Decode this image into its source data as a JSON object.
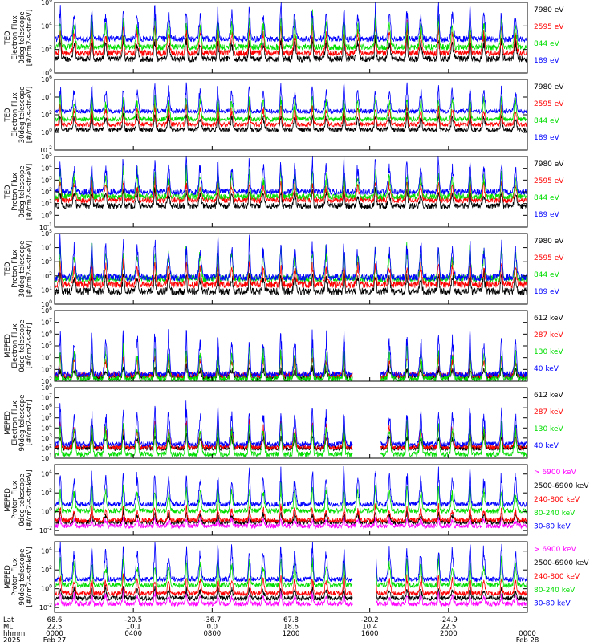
{
  "chart_data": {
    "type": "line",
    "year": "2025",
    "panels": [
      {
        "ylabel": [
          "TED",
          "Electron Flux",
          "0deg telescope",
          "[#/cm2-s-str-eV]"
        ],
        "yticks": [
          "10^6",
          "10^4",
          "10^2",
          "10^0"
        ],
        "ylim_log": [
          0,
          6
        ],
        "series": [
          {
            "name": "7980 eV",
            "color": "#000000",
            "base": 1.2,
            "spike": 1.6
          },
          {
            "name": "2595 eV",
            "color": "#ff0000",
            "base": 1.7,
            "spike": 2.0
          },
          {
            "name": "844 eV",
            "color": "#00dd00",
            "base": 2.2,
            "spike": 2.2
          },
          {
            "name": "189 eV",
            "color": "#0000ff",
            "base": 2.9,
            "spike": 2.4
          }
        ]
      },
      {
        "ylabel": [
          "TED",
          "Electron Flux",
          "30deg telescope",
          "[#/cm2-s-str-eV]"
        ],
        "yticks": [
          "10^6",
          "10^4",
          "10^2",
          "10^0",
          "10^-2"
        ],
        "ylim_log": [
          -2,
          6
        ],
        "series": [
          {
            "name": "7980 eV",
            "color": "#000000",
            "base": 0.3,
            "spike": 1.6
          },
          {
            "name": "2595 eV",
            "color": "#ff0000",
            "base": 0.9,
            "spike": 2.0
          },
          {
            "name": "844 eV",
            "color": "#00dd00",
            "base": 1.5,
            "spike": 2.3
          },
          {
            "name": "189 eV",
            "color": "#0000ff",
            "base": 2.4,
            "spike": 2.6
          }
        ]
      },
      {
        "ylabel": [
          "TED",
          "Proton Flux",
          "0deg telescope",
          "[#/cm2-s-str-eV]"
        ],
        "yticks": [
          "10^5",
          "10^4",
          "10^3",
          "10^2",
          "10^1",
          "10^0",
          "10^-1"
        ],
        "ylim_log": [
          -1,
          5
        ],
        "series": [
          {
            "name": "7980 eV",
            "color": "#000000",
            "base": 0.8,
            "spike": 1.2
          },
          {
            "name": "2595 eV",
            "color": "#ff0000",
            "base": 1.3,
            "spike": 1.5
          },
          {
            "name": "844 eV",
            "color": "#00dd00",
            "base": 1.6,
            "spike": 2.0
          },
          {
            "name": "189 eV",
            "color": "#0000ff",
            "base": 2.0,
            "spike": 2.4
          }
        ]
      },
      {
        "ylabel": [
          "TED",
          "Proton Flux",
          "30deg telescope",
          "[#/cm2-s-str-eV]"
        ],
        "yticks": [
          "10^5",
          "10^4",
          "10^3",
          "10^2",
          "10^1",
          "10^0"
        ],
        "ylim_log": [
          0,
          5
        ],
        "series": [
          {
            "name": "7980 eV",
            "color": "#000000",
            "base": 0.9,
            "spike": 1.1
          },
          {
            "name": "2595 eV",
            "color": "#ff0000",
            "base": 1.4,
            "spike": 1.4
          },
          {
            "name": "844 eV",
            "color": "#00dd00",
            "base": 1.8,
            "spike": 2.1
          },
          {
            "name": "189 eV",
            "color": "#0000ff",
            "base": 1.9,
            "spike": 2.3
          }
        ]
      },
      {
        "ylabel": [
          "MEPED",
          "Electron Flux",
          "0deg telescope",
          "[#/cm2-s-str]"
        ],
        "yticks": [
          "10^8",
          "10^7",
          "10^6",
          "10^5",
          "10^4",
          "10^3",
          "10^2"
        ],
        "ylim_log": [
          2,
          8
        ],
        "gap": [
          0.63,
          0.69
        ],
        "series": [
          {
            "name": "612 keV",
            "color": "#000000",
            "base": 2.4,
            "spike": 0.6
          },
          {
            "name": "287 keV",
            "color": "#ff0000",
            "base": 2.5,
            "spike": 1.5
          },
          {
            "name": "130 keV",
            "color": "#00dd00",
            "base": 2.2,
            "spike": 2.4
          },
          {
            "name": "40 keV",
            "color": "#0000ff",
            "base": 2.6,
            "spike": 3.2
          }
        ]
      },
      {
        "ylabel": [
          "MEPED",
          "Electron Flux",
          "90deg telescope",
          "[#/cm2-s-str]"
        ],
        "yticks": [
          "10^8",
          "10^7",
          "10^6",
          "10^5",
          "10^4",
          "10^3",
          "10^2",
          "10^1"
        ],
        "ylim_log": [
          1,
          8
        ],
        "gap": [
          0.63,
          0.69
        ],
        "series": [
          {
            "name": "612 keV",
            "color": "#000000",
            "base": 2.0,
            "spike": 1.2
          },
          {
            "name": "287 keV",
            "color": "#ff0000",
            "base": 2.1,
            "spike": 2.2
          },
          {
            "name": "130 keV",
            "color": "#00dd00",
            "base": 1.4,
            "spike": 2.8
          },
          {
            "name": "40 keV",
            "color": "#0000ff",
            "base": 2.4,
            "spike": 3.3
          }
        ]
      },
      {
        "ylabel": [
          "MEPED",
          "Proton Flux",
          "0deg telescope",
          "[#/cm2-s-str-keV]"
        ],
        "yticks": [
          "10^4",
          "10^2",
          "10^0",
          "10^-2"
        ],
        "ylim_log": [
          -2.5,
          5
        ],
        "series": [
          {
            "name": "> 6900 keV",
            "color": "#ff00ff",
            "base": -1.5,
            "spike": 0.7
          },
          {
            "name": "2500-6900 keV",
            "color": "#000000",
            "base": -1.1,
            "spike": 0.9
          },
          {
            "name": "240-800 keV",
            "color": "#ff0000",
            "base": -0.9,
            "spike": 1.3
          },
          {
            "name": "80-240 keV",
            "color": "#00dd00",
            "base": 0.1,
            "spike": 2.3
          },
          {
            "name": "30-80 keV",
            "color": "#0000ff",
            "base": 0.8,
            "spike": 3.2
          }
        ]
      },
      {
        "ylabel": [
          "MEPED",
          "Proton Flux",
          "90deg telescope",
          "[#/cm2-s-str-keV]"
        ],
        "yticks": [
          "10^4",
          "10^2",
          "10^0",
          "10^-2"
        ],
        "ylim_log": [
          -2.5,
          5
        ],
        "gap": [
          0.63,
          0.68
        ],
        "series": [
          {
            "name": "> 6900 keV",
            "color": "#ff00ff",
            "base": -1.6,
            "spike": 0.9
          },
          {
            "name": "2500-6900 keV",
            "color": "#000000",
            "base": -1.0,
            "spike": 1.0
          },
          {
            "name": "240-800 keV",
            "color": "#ff0000",
            "base": -0.5,
            "spike": 1.6
          },
          {
            "name": "80-240 keV",
            "color": "#00dd00",
            "base": 0.4,
            "spike": 2.4
          },
          {
            "name": "30-80 keV",
            "color": "#0000ff",
            "base": 1.0,
            "spike": 3.4
          }
        ]
      }
    ],
    "x_axis": {
      "row_labels": [
        "Lat",
        "MLT",
        "hhmm"
      ],
      "ticks": [
        {
          "lat": "68.6",
          "mlt": "22.5",
          "hhmm": "0000",
          "date": "Feb 27"
        },
        {
          "lat": "-20.5",
          "mlt": "10.1",
          "hhmm": "0400",
          "date": ""
        },
        {
          "lat": "-36.7",
          "mlt": "0.0",
          "hhmm": "0800",
          "date": ""
        },
        {
          "lat": "67.8",
          "mlt": "18.6",
          "hhmm": "1200",
          "date": ""
        },
        {
          "lat": "-20.2",
          "mlt": "10.4",
          "hhmm": "1600",
          "date": ""
        },
        {
          "lat": "-24.9",
          "mlt": "22.5",
          "hhmm": "2000",
          "date": ""
        },
        {
          "lat": "",
          "mlt": "",
          "hhmm": "0000",
          "date": "Feb 28"
        }
      ]
    },
    "pass_count": 15
  }
}
